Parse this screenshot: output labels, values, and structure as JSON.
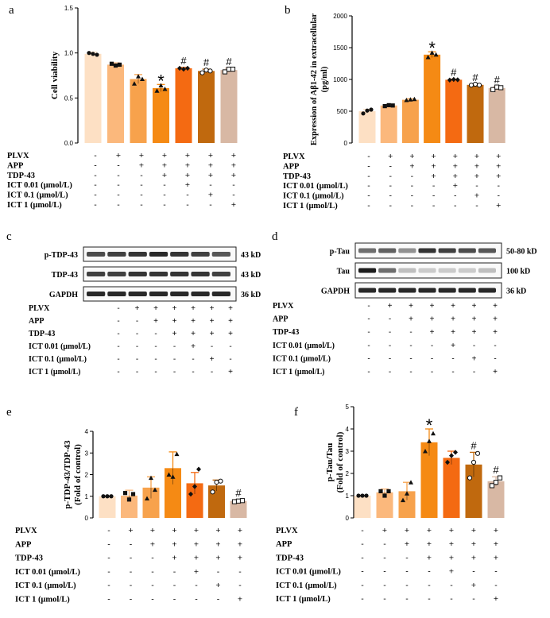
{
  "figure": {
    "panel_letters": [
      "a",
      "b",
      "c",
      "d",
      "e",
      "f"
    ],
    "treatment_labels": [
      "PLVX",
      "APP",
      "TDP-43",
      "ICT 0.01 (μmol/L)",
      "ICT 0.1 (μmol/L)",
      "ICT 1 (μmol/L)"
    ],
    "treatment_signs": [
      [
        "-",
        "+",
        "+",
        "+",
        "+",
        "+",
        "+"
      ],
      [
        "-",
        "-",
        "+",
        "+",
        "+",
        "+",
        "+"
      ],
      [
        "-",
        "-",
        "-",
        "+",
        "+",
        "+",
        "+"
      ],
      [
        "-",
        "-",
        "-",
        "-",
        "+",
        "-",
        "-"
      ],
      [
        "-",
        "-",
        "-",
        "-",
        "-",
        "+",
        "-"
      ],
      [
        "-",
        "-",
        "-",
        "-",
        "-",
        "-",
        "+"
      ]
    ],
    "colors": [
      "#fde0c4",
      "#fbb87c",
      "#f7a24c",
      "#f58a14",
      "#f46a12",
      "#c0690e",
      "#d8b8a4"
    ],
    "star": "*",
    "hash": "#"
  },
  "blots": {
    "c": {
      "rows": [
        {
          "name": "p-TDP-43",
          "size": "43 kD"
        },
        {
          "name": "TDP-43",
          "size": "43 kD"
        },
        {
          "name": "GAPDH",
          "size": "36 kD"
        }
      ]
    },
    "d": {
      "rows": [
        {
          "name": "p-Tau",
          "size": "50-80 kD"
        },
        {
          "name": "Tau",
          "size": "100 kD"
        },
        {
          "name": "GAPDH",
          "size": "36 kD"
        }
      ]
    }
  },
  "chart_data": [
    {
      "panel": "a",
      "type": "bar",
      "title": "",
      "xlabel": "",
      "ylabel": "Cell viability",
      "ylim": [
        0,
        1.5
      ],
      "yticks": [
        "0.0",
        "0.5",
        "1.0",
        "1.5"
      ],
      "ytick_values": [
        0,
        0.5,
        1.0,
        1.5
      ],
      "values": [
        0.99,
        0.87,
        0.71,
        0.61,
        0.83,
        0.8,
        0.81
      ],
      "errors": [
        0.02,
        0.02,
        0.05,
        0.04,
        0.01,
        0.02,
        0.02
      ],
      "points": [
        [
          1.0,
          0.99,
          0.98
        ],
        [
          0.88,
          0.86,
          0.87
        ],
        [
          0.66,
          0.74,
          0.71
        ],
        [
          0.58,
          0.64,
          0.6
        ],
        [
          0.83,
          0.82,
          0.83
        ],
        [
          0.78,
          0.81,
          0.8
        ],
        [
          0.79,
          0.82,
          0.82
        ]
      ],
      "markers": [
        "",
        "",
        "",
        "*",
        "#",
        "#",
        "#"
      ]
    },
    {
      "panel": "b",
      "type": "bar",
      "title": "",
      "xlabel": "",
      "ylabel": "Expression of Aβ1-42 in extracellular (pg/ml)",
      "ylabel_line1": "Expression of Aβ1-42 in extracellular",
      "ylabel_line2": "(pg/ml)",
      "ylim": [
        0,
        2000
      ],
      "yticks": [
        "0",
        "500",
        "1000",
        "1500",
        "2000"
      ],
      "ytick_values": [
        0,
        500,
        1000,
        1500,
        2000
      ],
      "values": [
        500,
        590,
        680,
        1390,
        995,
        915,
        865
      ],
      "errors": [
        30,
        15,
        15,
        45,
        10,
        10,
        20
      ],
      "points": [
        [
          465,
          510,
          525
        ],
        [
          580,
          595,
          590
        ],
        [
          675,
          685,
          690
        ],
        [
          1350,
          1420,
          1390
        ],
        [
          990,
          1000,
          995
        ],
        [
          910,
          925,
          910
        ],
        [
          840,
          880,
          870
        ]
      ],
      "markers": [
        "",
        "",
        "",
        "*",
        "#",
        "#",
        "#"
      ]
    },
    {
      "panel": "e",
      "type": "bar",
      "title": "",
      "xlabel": "",
      "ylabel": "p-TDP-43/TDP-43 (Fold of control)",
      "ylabel_line1": "p-TDP-43/TDP-43",
      "ylabel_line2": "(Fold of control)",
      "ylim": [
        0,
        4
      ],
      "yticks": [
        "0",
        "1",
        "2",
        "3",
        "4"
      ],
      "ytick_values": [
        0,
        1,
        2,
        3,
        4
      ],
      "values": [
        1.0,
        1.03,
        1.4,
        2.3,
        1.6,
        1.5,
        0.78
      ],
      "errors": [
        0.0,
        0.25,
        0.5,
        0.75,
        0.5,
        0.25,
        0.07
      ],
      "points": [
        [
          1.0,
          1.0,
          1.0
        ],
        [
          1.15,
          0.85,
          1.1
        ],
        [
          0.9,
          1.85,
          1.3
        ],
        [
          2.0,
          1.9,
          2.95
        ],
        [
          1.1,
          1.45,
          2.25
        ],
        [
          1.2,
          1.65,
          1.7
        ],
        [
          0.75,
          0.78,
          0.8
        ]
      ],
      "markers": [
        "",
        "",
        "",
        "",
        "",
        "",
        "#"
      ]
    },
    {
      "panel": "f",
      "type": "bar",
      "title": "",
      "xlabel": "",
      "ylabel": "p-Tau/Tau (Fold of control)",
      "ylabel_line1": "p-Tau/Tau",
      "ylabel_line2": "(Fold of control)",
      "ylim": [
        0,
        5
      ],
      "yticks": [
        "0",
        "1",
        "2",
        "3",
        "4",
        "5"
      ],
      "ytick_values": [
        0,
        1,
        2,
        3,
        4,
        5
      ],
      "values": [
        1.0,
        1.15,
        1.2,
        3.4,
        2.7,
        2.4,
        1.65
      ],
      "errors": [
        0.0,
        0.15,
        0.4,
        0.6,
        0.3,
        0.55,
        0.2
      ],
      "points": [
        [
          1.0,
          1.0,
          1.0
        ],
        [
          1.2,
          1.0,
          1.2
        ],
        [
          0.8,
          1.1,
          1.6
        ],
        [
          3.0,
          3.45,
          3.8
        ],
        [
          2.5,
          2.8,
          2.95
        ],
        [
          1.8,
          2.5,
          2.9
        ],
        [
          1.45,
          1.6,
          1.8
        ]
      ],
      "markers": [
        "",
        "",
        "",
        "*",
        "",
        "#",
        "#"
      ]
    }
  ]
}
